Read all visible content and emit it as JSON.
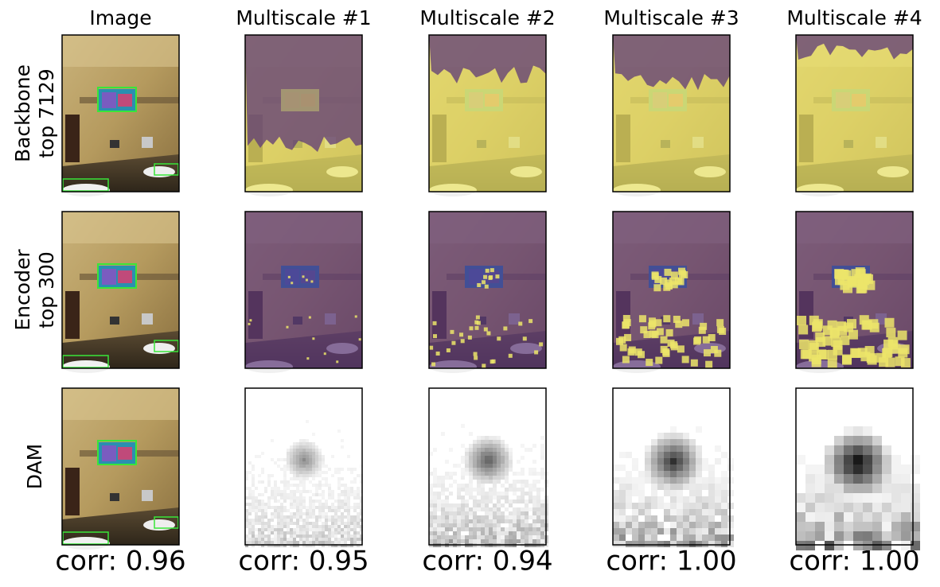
{
  "columns": [
    "Image",
    "Multiscale #1",
    "Multiscale #2",
    "Multiscale #3",
    "Multiscale #4"
  ],
  "rows": [
    [
      "Backbone",
      "top 7129"
    ],
    [
      "Encoder",
      "top 300"
    ],
    [
      "DAM"
    ]
  ],
  "corr": [
    "corr: 0.96",
    "corr: 0.95",
    "corr: 0.94",
    "corr: 1.00",
    "corr: 1.00"
  ]
}
